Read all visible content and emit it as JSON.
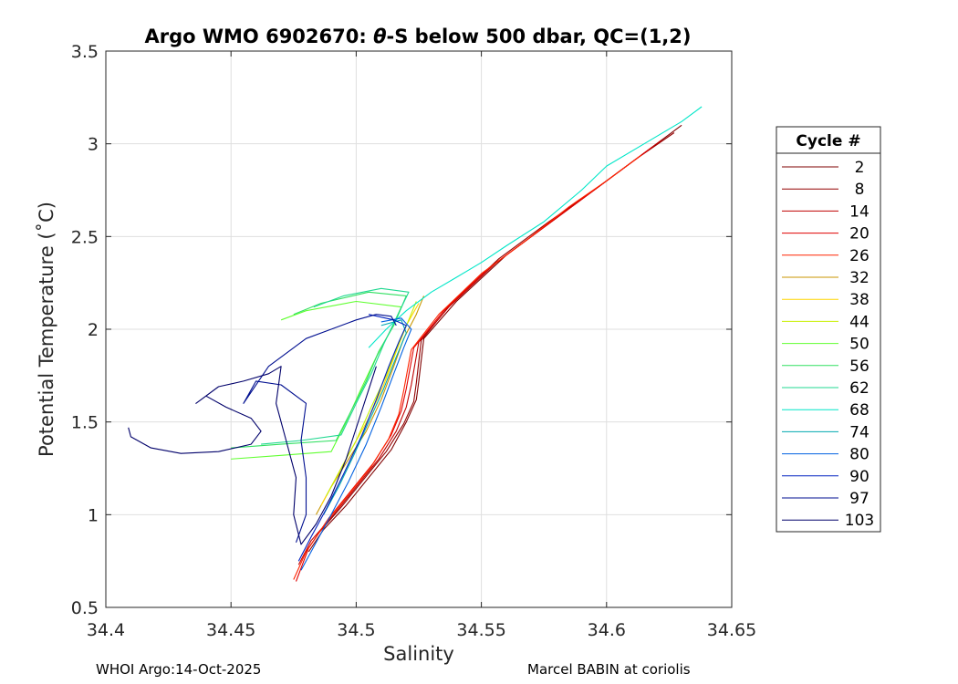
{
  "chart_data": {
    "type": "line",
    "title_prefix": "Argo WMO 6902670: ",
    "title_theta": "θ",
    "title_suffix": "-S below 500 dbar,  QC=(1,2)",
    "xlabel": "Salinity",
    "ylabel": "Potential Temperature (˚C)",
    "xlim": [
      34.4,
      34.65
    ],
    "ylim": [
      0.5,
      3.5
    ],
    "xticks": [
      "34.4",
      "34.45",
      "34.5",
      "34.55",
      "34.6",
      "34.65"
    ],
    "yticks": [
      "0.5",
      "1",
      "1.5",
      "2",
      "2.5",
      "3",
      "3.5"
    ],
    "grid": true,
    "legend_title": "Cycle #",
    "legend_position": "outside-right",
    "series": [
      {
        "name": "2",
        "color": "#7f0000",
        "x": [
          34.481,
          34.487,
          34.496,
          34.505,
          34.514,
          34.52,
          34.524,
          34.525,
          34.527,
          34.54,
          34.56,
          34.58,
          34.6,
          34.615,
          34.63
        ],
        "y": [
          0.8,
          0.92,
          1.05,
          1.2,
          1.35,
          1.5,
          1.62,
          1.72,
          1.95,
          2.15,
          2.4,
          2.6,
          2.8,
          2.95,
          3.1
        ]
      },
      {
        "name": "8",
        "color": "#940000",
        "x": [
          34.479,
          34.485,
          34.494,
          34.503,
          34.512,
          34.519,
          34.523,
          34.524,
          34.526,
          34.538,
          34.557,
          34.577,
          34.597,
          34.612,
          34.627
        ],
        "y": [
          0.78,
          0.9,
          1.04,
          1.19,
          1.34,
          1.49,
          1.61,
          1.71,
          1.94,
          2.14,
          2.38,
          2.58,
          2.77,
          2.92,
          3.06
        ]
      },
      {
        "name": "14",
        "color": "#c00000",
        "x": [
          34.477,
          34.482,
          34.491,
          34.5,
          34.509,
          34.516,
          34.52,
          34.522,
          34.525,
          34.537,
          34.556,
          34.575,
          34.594,
          34.608,
          34.622
        ],
        "y": [
          0.73,
          0.86,
          1.0,
          1.15,
          1.3,
          1.45,
          1.58,
          1.7,
          1.93,
          2.12,
          2.36,
          2.55,
          2.74,
          2.88,
          3.02
        ]
      },
      {
        "name": "20",
        "color": "#e00000",
        "x": [
          34.476,
          34.481,
          34.489,
          34.498,
          34.507,
          34.514,
          34.518,
          34.52,
          34.523,
          34.535,
          34.553,
          34.572,
          34.59,
          34.604,
          34.618
        ],
        "y": [
          0.64,
          0.82,
          0.98,
          1.13,
          1.28,
          1.43,
          1.56,
          1.68,
          1.9,
          2.1,
          2.33,
          2.52,
          2.7,
          2.84,
          2.98
        ]
      },
      {
        "name": "26",
        "color": "#ff2400",
        "x": [
          34.475,
          34.48,
          34.488,
          34.497,
          34.506,
          34.513,
          34.517,
          34.519,
          34.522,
          34.533,
          34.55,
          34.568,
          34.585,
          34.6,
          34.614
        ],
        "y": [
          0.65,
          0.8,
          0.96,
          1.11,
          1.26,
          1.41,
          1.54,
          1.67,
          1.89,
          2.08,
          2.3,
          2.48,
          2.66,
          2.8,
          2.94
        ]
      },
      {
        "name": "32",
        "color": "#c89600",
        "x": [
          34.484,
          34.49,
          34.497,
          34.504,
          34.51,
          34.515,
          34.519,
          34.524,
          34.527
        ],
        "y": [
          1.0,
          1.15,
          1.3,
          1.45,
          1.62,
          1.8,
          1.95,
          2.08,
          2.18
        ]
      },
      {
        "name": "38",
        "color": "#ffd500",
        "x": [
          34.486,
          34.492,
          34.498,
          34.505,
          34.511,
          34.516,
          34.52,
          34.525
        ],
        "y": [
          1.05,
          1.2,
          1.35,
          1.52,
          1.7,
          1.88,
          2.02,
          2.14
        ]
      },
      {
        "name": "44",
        "color": "#c8f000",
        "x": [
          34.488,
          34.494,
          34.5,
          34.506,
          34.512,
          34.517,
          34.521,
          34.524
        ],
        "y": [
          1.1,
          1.25,
          1.4,
          1.58,
          1.75,
          1.92,
          2.05,
          2.15
        ]
      },
      {
        "name": "50",
        "color": "#60ff30",
        "x": [
          34.45,
          34.47,
          34.49,
          34.496,
          34.502,
          34.508,
          34.514,
          34.518,
          34.5,
          34.48,
          34.47
        ],
        "y": [
          1.3,
          1.32,
          1.34,
          1.5,
          1.68,
          1.85,
          2.0,
          2.12,
          2.15,
          2.1,
          2.05
        ]
      },
      {
        "name": "56",
        "color": "#30e060",
        "x": [
          34.45,
          34.47,
          34.492,
          34.498,
          34.504,
          34.509,
          34.515,
          34.52,
          34.505,
          34.486,
          34.475
        ],
        "y": [
          1.36,
          1.38,
          1.4,
          1.56,
          1.72,
          1.88,
          2.02,
          2.18,
          2.2,
          2.14,
          2.08
        ]
      },
      {
        "name": "62",
        "color": "#20d890",
        "x": [
          34.462,
          34.478,
          34.494,
          34.5,
          34.506,
          34.511,
          34.516,
          34.521,
          34.51,
          34.495,
          34.483
        ],
        "y": [
          1.38,
          1.4,
          1.43,
          1.6,
          1.76,
          1.92,
          2.06,
          2.2,
          2.22,
          2.18,
          2.12
        ]
      },
      {
        "name": "68",
        "color": "#00e6c8",
        "x": [
          34.505,
          34.512,
          34.52,
          34.53,
          34.54,
          34.55,
          34.56,
          34.575,
          34.59,
          34.6,
          34.615,
          34.63,
          34.638
        ],
        "y": [
          1.9,
          2.0,
          2.1,
          2.2,
          2.28,
          2.36,
          2.45,
          2.58,
          2.75,
          2.88,
          3.0,
          3.12,
          3.2
        ]
      },
      {
        "name": "74",
        "color": "#00a8b0",
        "x": [
          34.487,
          34.493,
          34.499,
          34.505,
          34.511,
          34.516,
          34.52,
          34.518,
          34.51
        ],
        "y": [
          1.0,
          1.15,
          1.32,
          1.5,
          1.68,
          1.85,
          1.98,
          2.05,
          2.02
        ]
      },
      {
        "name": "80",
        "color": "#0060e0",
        "x": [
          34.478,
          34.484,
          34.49,
          34.497,
          34.504,
          34.51,
          34.515,
          34.519,
          34.522,
          34.518,
          34.51
        ],
        "y": [
          0.7,
          0.85,
          1.0,
          1.18,
          1.38,
          1.58,
          1.76,
          1.9,
          2.0,
          2.06,
          2.04
        ]
      },
      {
        "name": "90",
        "color": "#0020c0",
        "x": [
          34.477,
          34.482,
          34.488,
          34.495,
          34.502,
          34.508,
          34.513,
          34.517,
          34.52,
          34.515,
          34.505
        ],
        "y": [
          0.75,
          0.88,
          1.03,
          1.22,
          1.42,
          1.62,
          1.8,
          1.93,
          2.02,
          2.05,
          2.08
        ]
      },
      {
        "name": "97",
        "color": "#000f90",
        "x": [
          34.476,
          34.48,
          34.48,
          34.478,
          34.48,
          34.47,
          34.46,
          34.455,
          34.465,
          34.48,
          34.49,
          34.5,
          34.508,
          34.514,
          34.516
        ],
        "y": [
          0.85,
          1.0,
          1.2,
          1.4,
          1.6,
          1.7,
          1.72,
          1.6,
          1.8,
          1.95,
          2.0,
          2.05,
          2.08,
          2.07,
          2.02
        ]
      },
      {
        "name": "103",
        "color": "#00006a",
        "x": [
          34.409,
          34.41,
          34.418,
          34.43,
          34.445,
          34.458,
          34.462,
          34.458,
          34.448,
          34.44,
          34.436,
          34.445,
          34.455,
          34.465,
          34.47,
          34.468,
          34.472,
          34.476,
          34.475,
          34.478,
          34.484,
          34.49,
          34.496,
          34.502,
          34.508
        ],
        "y": [
          1.47,
          1.42,
          1.36,
          1.33,
          1.34,
          1.38,
          1.45,
          1.52,
          1.58,
          1.64,
          1.6,
          1.69,
          1.72,
          1.76,
          1.8,
          1.6,
          1.4,
          1.2,
          1.0,
          0.84,
          0.95,
          1.1,
          1.3,
          1.55,
          1.8
        ]
      }
    ]
  },
  "footer": {
    "left": "WHOI Argo:14-Oct-2025",
    "right": "Marcel BABIN at coriolis"
  }
}
